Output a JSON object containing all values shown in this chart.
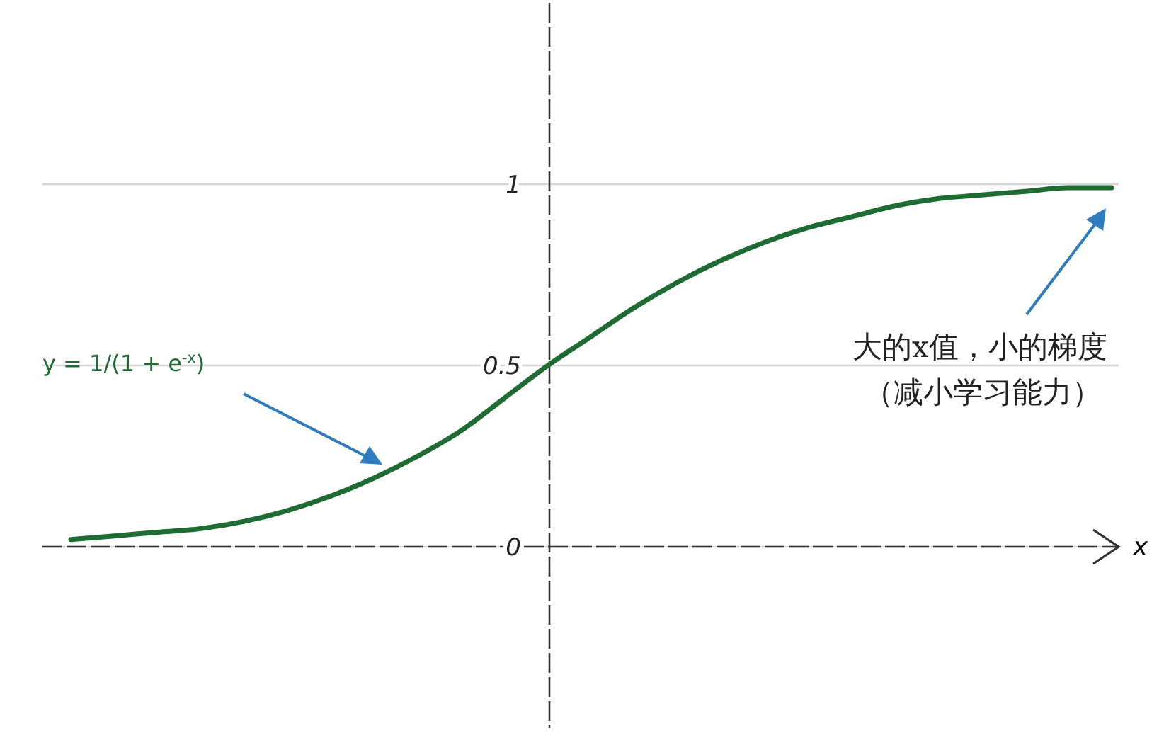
{
  "chart_data": {
    "type": "line",
    "xlabel": "x",
    "categories": [
      null,
      null,
      null,
      null,
      null,
      null,
      null,
      null,
      null,
      null,
      null,
      null,
      null,
      null,
      null,
      null,
      null,
      null,
      null,
      null,
      null,
      null,
      null,
      null,
      null
    ],
    "series": [
      {
        "color": "#1e6b34",
        "values": [
          0.02,
          0.03,
          0.04,
          0.05,
          0.07,
          0.1,
          0.14,
          0.19,
          0.25,
          0.32,
          0.41,
          0.5,
          0.58,
          0.66,
          0.73,
          0.79,
          0.84,
          0.88,
          0.91,
          0.94,
          0.96,
          0.97,
          0.98,
          0.99,
          0.99
        ]
      }
    ],
    "ylim": [
      -0.5,
      1.5
    ],
    "yticks": [
      0,
      0.5,
      1
    ],
    "grid": "y",
    "marker": "none",
    "line_style": "solid",
    "annotations": [
      "y = 1/(1 + e$^{-x}$)",
      "大的x值，小的梯度",
      "（减小学习能力）"
    ]
  }
}
